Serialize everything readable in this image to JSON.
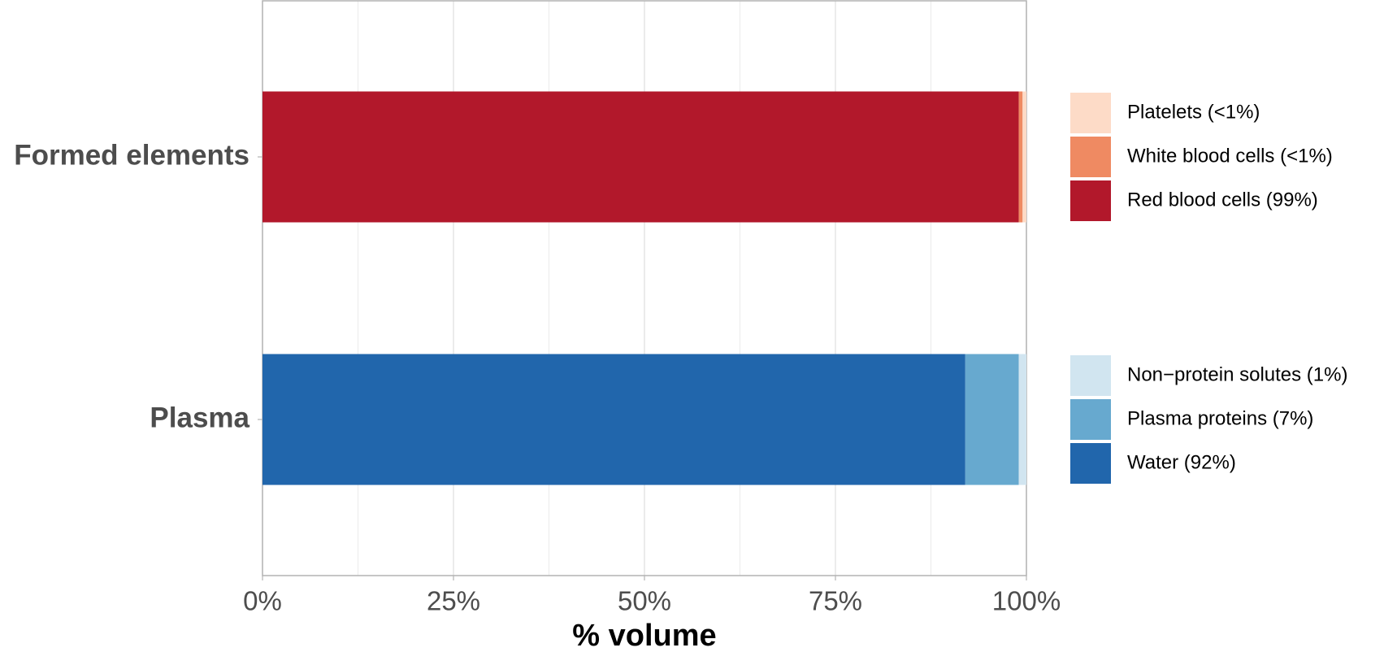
{
  "chart_data": {
    "type": "stacked_bar_horizontal",
    "x_label": "% volume",
    "categories": [
      "Formed elements",
      "Plasma"
    ],
    "series": [
      {
        "name": "Red blood cells (99%)",
        "color": "#b2182b",
        "values": [
          99,
          null
        ]
      },
      {
        "name": "White blood cells (<1%)",
        "color": "#ef8a62",
        "values": [
          0.5,
          null
        ]
      },
      {
        "name": "Platelets (<1%)",
        "color": "#fddbc7",
        "values": [
          0.5,
          null
        ]
      },
      {
        "name": "Water (92%)",
        "color": "#2166ac",
        "values": [
          null,
          92
        ]
      },
      {
        "name": "Plasma proteins (7%)",
        "color": "#67a9cf",
        "values": [
          null,
          7
        ]
      },
      {
        "name": "Non−protein solutes (1%)",
        "color": "#d1e5f0",
        "values": [
          null,
          1
        ]
      }
    ],
    "xlim": [
      0,
      100
    ],
    "xticks": [
      {
        "value": 0,
        "label": "0%"
      },
      {
        "value": 25,
        "label": "25%"
      },
      {
        "value": 50,
        "label": "50%"
      },
      {
        "value": 75,
        "label": "75%"
      },
      {
        "value": 100,
        "label": "100%"
      }
    ],
    "minor_xticks": [
      12.5,
      37.5,
      62.5,
      87.5
    ],
    "grid": true,
    "legend": "right"
  }
}
